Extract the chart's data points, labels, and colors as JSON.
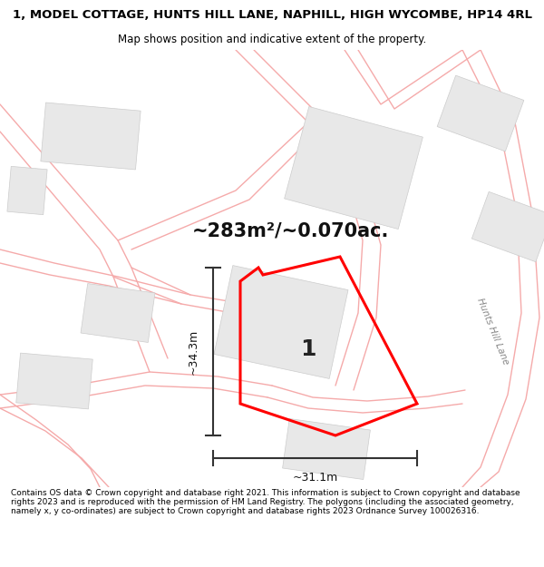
{
  "title": "1, MODEL COTTAGE, HUNTS HILL LANE, NAPHILL, HIGH WYCOMBE, HP14 4RL",
  "subtitle": "Map shows position and indicative extent of the property.",
  "area_text": "~283m²/~0.070ac.",
  "dim_width": "~31.1m",
  "dim_height": "~34.3m",
  "label_number": "1",
  "road_label": "Hunts Hill Lane",
  "footer_text": "Contains OS data © Crown copyright and database right 2021. This information is subject to Crown copyright and database rights 2023 and is reproduced with the permission of HM Land Registry. The polygons (including the associated geometry, namely x, y co-ordinates) are subject to Crown copyright and database rights 2023 Ordnance Survey 100026316.",
  "bg_color": "#ffffff",
  "map_bg": "#ffffff",
  "plot_color": "#ff0000",
  "building_fill": "#e8e8e8",
  "building_edge": "#cccccc",
  "road_color": "#f5aaaa",
  "title_fontsize": 9.5,
  "subtitle_fontsize": 8.5,
  "area_fontsize": 15,
  "dim_fontsize": 9,
  "label_fontsize": 18,
  "road_label_fontsize": 7.5,
  "footer_fontsize": 6.5
}
